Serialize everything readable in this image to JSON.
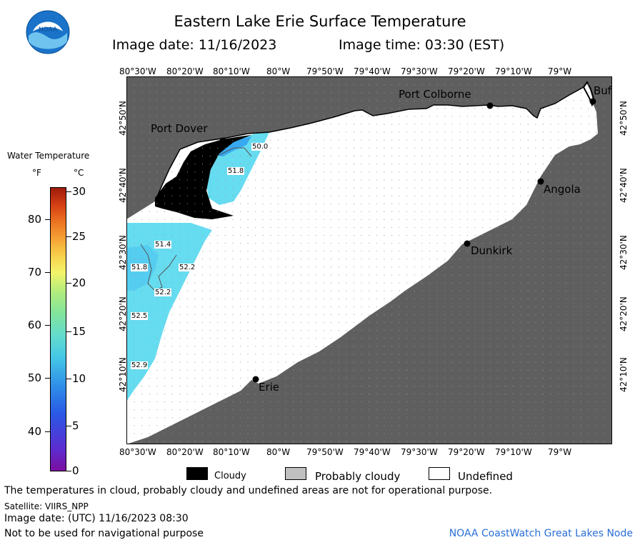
{
  "header": {
    "title": "Eastern Lake Erie Surface Temperature",
    "image_date": "Image date: 11/16/2023",
    "image_time": "Image time: 03:30 (EST)",
    "logo_text": "NOAA"
  },
  "legend": {
    "title": "Water Temperature",
    "unit_f": "°F",
    "unit_c": "°C",
    "f_ticks": [
      "80",
      "70",
      "60",
      "50",
      "40"
    ],
    "c_ticks": [
      "30",
      "25",
      "20",
      "15",
      "10",
      "5",
      "0"
    ]
  },
  "axes": {
    "lon_labels": [
      "80°30'W",
      "80°20'W",
      "80°10'W",
      "80°W",
      "79°50'W",
      "79°40'W",
      "79°30'W",
      "79°20'W",
      "79°10'W",
      "79°W"
    ],
    "lat_labels": [
      "42°50'N",
      "42°40'N",
      "42°30'N",
      "42°20'N",
      "42°10'N"
    ]
  },
  "places": {
    "port_colborne": "Port Colborne",
    "port_dover": "Port Dover",
    "angola": "Angola",
    "dunkirk": "Dunkirk",
    "erie": "Erie",
    "buffalo": "Buf"
  },
  "isotherms": [
    "50.0",
    "51.8",
    "51.4",
    "51.8",
    "52.2",
    "52.2",
    "52.5",
    "52.9"
  ],
  "key": {
    "cloudy": "Cloudy",
    "probably_cloudy": "Probably cloudy",
    "undefined": "Undefined"
  },
  "footer": {
    "disclaimer": "The temperatures in cloud, probably cloudy and undefined areas are not for operational purpose.",
    "satellite": "Satellite: VIIRS_NPP",
    "utc_date": "Image date: (UTC) 11/16/2023  08:30",
    "navigation": "Not to be used for navigational purpose",
    "credit": "NOAA CoastWatch Great Lakes Node"
  },
  "colors": {
    "land": "#5f5f5f",
    "cloud": "#000000",
    "undefined": "#ffffff",
    "probably_cloudy": "#c0c0c0",
    "water_warm": "#66dcf0",
    "water_cool": "#36a9f0"
  }
}
